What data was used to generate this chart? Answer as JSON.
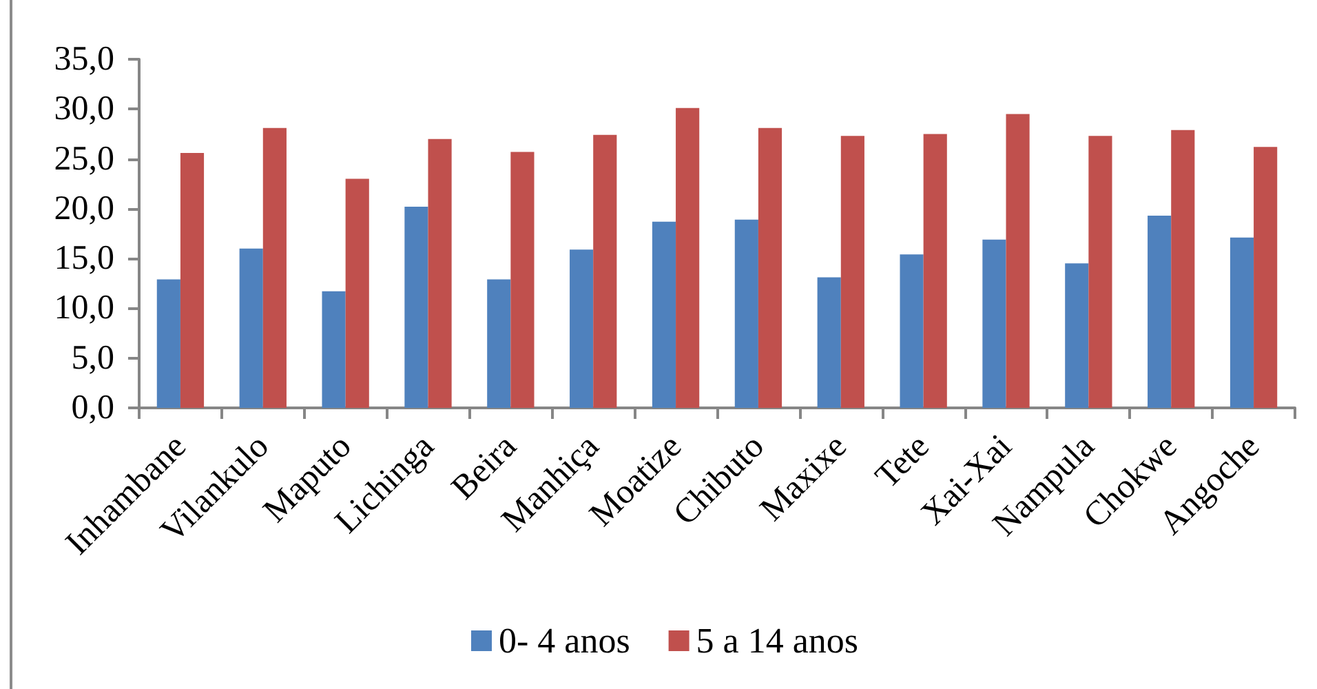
{
  "chart_data": {
    "type": "bar",
    "categories": [
      "Inhambane",
      "Vilankulo",
      "Maputo",
      "Lichinga",
      "Beira",
      "Manhiça",
      "Moatize",
      "Chibuto",
      "Maxixe",
      "Tete",
      "Xai-Xai",
      "Nampula",
      "Chokwe",
      "Angoche"
    ],
    "series": [
      {
        "name": "0- 4 anos",
        "color": "#4f81bd",
        "values": [
          12.9,
          16.0,
          11.7,
          20.2,
          12.9,
          15.9,
          18.7,
          18.9,
          13.1,
          15.4,
          16.9,
          14.5,
          19.3,
          17.1
        ]
      },
      {
        "name": "5 a 14 anos",
        "color": "#c0504d",
        "values": [
          25.6,
          28.1,
          23.0,
          27.0,
          25.7,
          27.4,
          30.1,
          28.1,
          27.3,
          27.5,
          29.5,
          27.3,
          27.9,
          26.2
        ]
      }
    ],
    "ylim": [
      0,
      35
    ],
    "yticks": [
      {
        "value": 0,
        "label": "0,0"
      },
      {
        "value": 5,
        "label": "5,0"
      },
      {
        "value": 10,
        "label": "10,0"
      },
      {
        "value": 15,
        "label": "15,0"
      },
      {
        "value": 20,
        "label": "20,0"
      },
      {
        "value": 25,
        "label": "25,0"
      },
      {
        "value": 30,
        "label": "30,0"
      },
      {
        "value": 35,
        "label": "35,0"
      }
    ],
    "legend": "bottom"
  }
}
